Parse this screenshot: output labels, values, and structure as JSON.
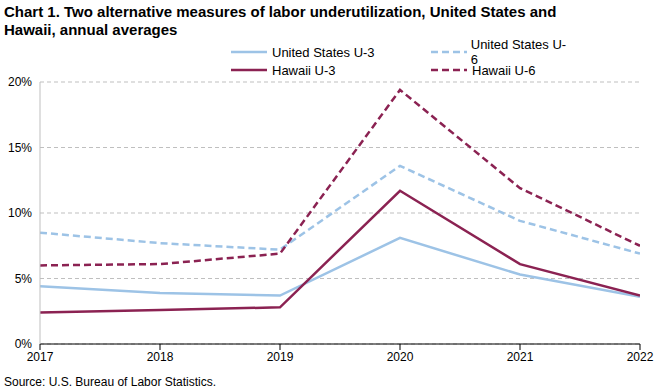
{
  "chart_data": {
    "type": "line",
    "title": "Chart 1. Two alternative measures of labor underutilization, United States and Hawaii, annual averages",
    "annotations": [
      "Source: U.S. Bureau of Labor Statistics."
    ],
    "x": [
      2017,
      2018,
      2019,
      2020,
      2021,
      2022
    ],
    "xlim": [
      2017,
      2022
    ],
    "xticks": [
      2017,
      2018,
      2019,
      2020,
      2021,
      2022
    ],
    "ylim": [
      0,
      20
    ],
    "yticks": [
      {
        "value": 0,
        "label": "0%"
      },
      {
        "value": 5,
        "label": "5%"
      },
      {
        "value": 10,
        "label": "10%"
      },
      {
        "value": 15,
        "label": "15%"
      },
      {
        "value": 20,
        "label": "20%"
      }
    ],
    "grid": true,
    "legend": "upper right",
    "series": [
      {
        "name": "United States U-3",
        "color": "#9dc3e6",
        "line_style": "solid",
        "values": [
          4.4,
          3.9,
          3.7,
          8.1,
          5.3,
          3.6
        ]
      },
      {
        "name": "United States U-6",
        "color": "#9dc3e6",
        "line_style": "dashed",
        "values": [
          8.5,
          7.7,
          7.2,
          13.6,
          9.4,
          6.9
        ]
      },
      {
        "name": "Hawaii U-3",
        "color": "#8b2252",
        "line_style": "solid",
        "values": [
          2.4,
          2.6,
          2.8,
          11.7,
          6.1,
          3.7
        ]
      },
      {
        "name": "Hawaii U-6",
        "color": "#8b2252",
        "line_style": "dashed",
        "values": [
          6.0,
          6.1,
          6.9,
          19.4,
          11.9,
          7.5
        ]
      }
    ]
  }
}
